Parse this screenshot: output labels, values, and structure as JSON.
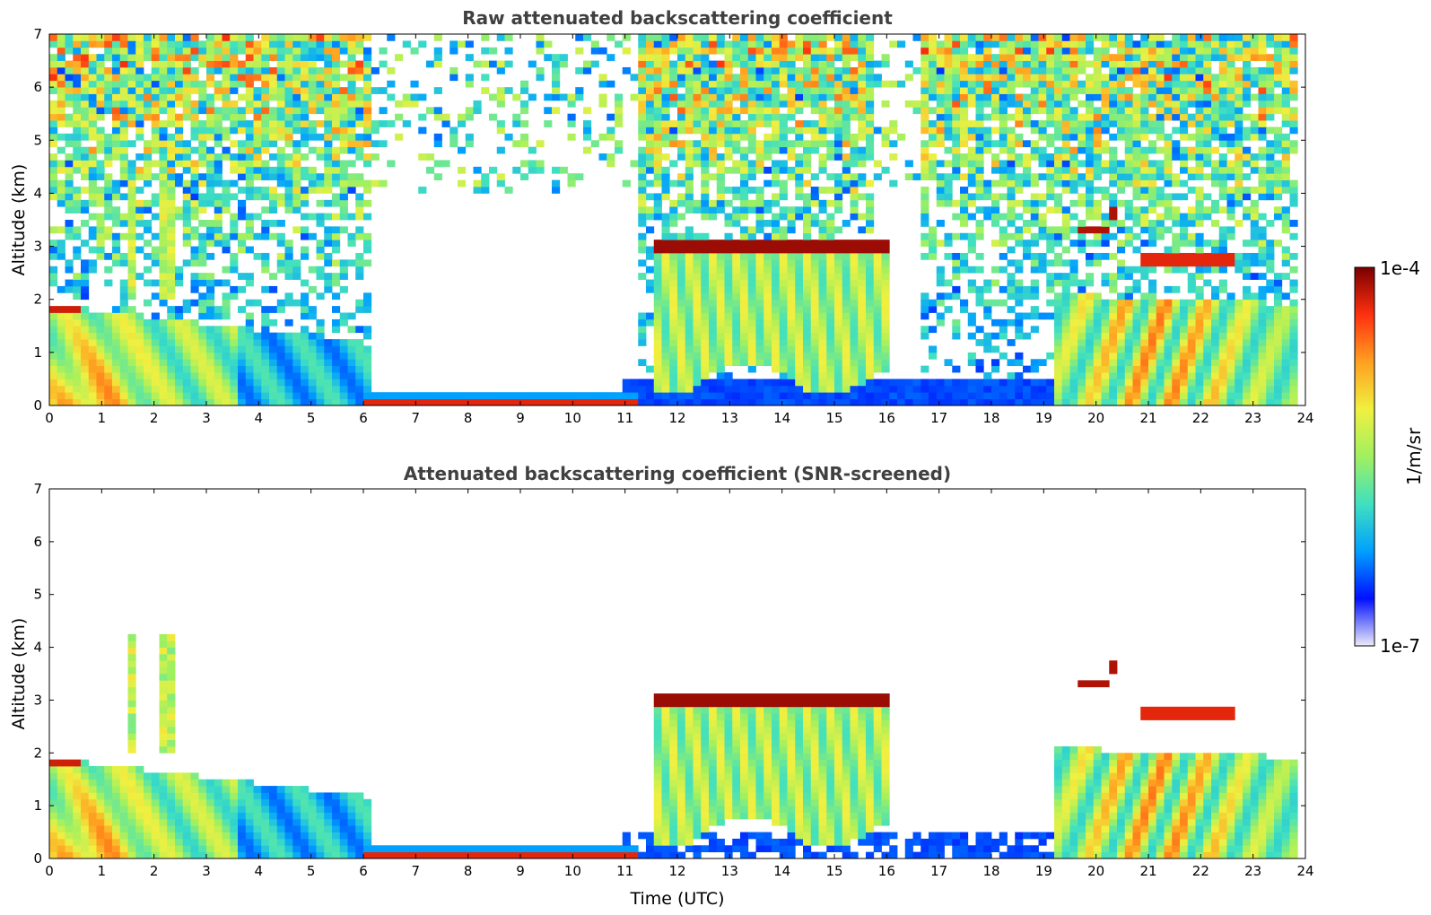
{
  "chart_data": [
    {
      "type": "heatmap",
      "title": "Raw attenuated backscattering coefficient",
      "xlabel": "",
      "ylabel": "Altitude (km)",
      "xlim": [
        0,
        24
      ],
      "ylim": [
        0,
        7
      ],
      "xticks": [
        "0",
        "1",
        "2",
        "3",
        "4",
        "5",
        "6",
        "7",
        "8",
        "9",
        "10",
        "11",
        "12",
        "13",
        "14",
        "15",
        "16",
        "17",
        "18",
        "19",
        "20",
        "21",
        "22",
        "23",
        "24"
      ],
      "yticks": [
        "0",
        "1",
        "2",
        "3",
        "4",
        "5",
        "6",
        "7"
      ],
      "screened": false,
      "features": [
        {
          "kind": "cloud_layer",
          "x": [
            11.5,
            16.0
          ],
          "altitude": 3.05,
          "level": "high"
        },
        {
          "kind": "cloud_layer",
          "x": [
            19.7,
            20.2
          ],
          "altitude": 3.35,
          "level": "high"
        },
        {
          "kind": "cloud_layer",
          "x": [
            20.25,
            20.45
          ],
          "altitude": 3.65,
          "level": "high"
        },
        {
          "kind": "cloud_layer",
          "x": [
            20.8,
            22.6
          ],
          "altitude": 2.75,
          "level": "high"
        },
        {
          "kind": "cloud_layer",
          "x": [
            0.0,
            0.6
          ],
          "altitude": 1.8,
          "level": "high"
        },
        {
          "kind": "surface_layer",
          "x": [
            6.5,
            11.0
          ],
          "altitude": 0.1,
          "level": "high"
        },
        {
          "kind": "boundary_layer",
          "x": [
            0.0,
            6.0
          ],
          "top": 1.9,
          "level": "medium"
        },
        {
          "kind": "virga",
          "x": [
            11.5,
            16.0
          ],
          "top": 2.9,
          "bottom": 0.5,
          "level": "medium"
        },
        {
          "kind": "boundary_layer",
          "x": [
            19.2,
            23.8
          ],
          "top": 2.2,
          "level": "medium"
        },
        {
          "kind": "aerosol_layer",
          "x": [
            11.0,
            19.5
          ],
          "top": 0.4,
          "level": "low"
        }
      ]
    },
    {
      "type": "heatmap",
      "title": "Attenuated backscattering coefficient (SNR-screened)",
      "xlabel": "Time (UTC)",
      "ylabel": "Altitude (km)",
      "xlim": [
        0,
        24
      ],
      "ylim": [
        0,
        7
      ],
      "xticks": [
        "0",
        "1",
        "2",
        "3",
        "4",
        "5",
        "6",
        "7",
        "8",
        "9",
        "10",
        "11",
        "12",
        "13",
        "14",
        "15",
        "16",
        "17",
        "18",
        "19",
        "20",
        "21",
        "22",
        "23",
        "24"
      ],
      "yticks": [
        "0",
        "1",
        "2",
        "3",
        "4",
        "5",
        "6",
        "7"
      ],
      "screened": true
    }
  ],
  "colorbar": {
    "label": "1/m/sr",
    "max_label": "1e-4",
    "min_label": "1e-7",
    "scale": "log",
    "range": [
      1e-07,
      0.0001
    ],
    "colormap": [
      "#ecebf7",
      "#0010ff",
      "#00a0ff",
      "#40e0c0",
      "#a0f060",
      "#f0f040",
      "#ffa020",
      "#ff3010",
      "#7a0000"
    ]
  }
}
